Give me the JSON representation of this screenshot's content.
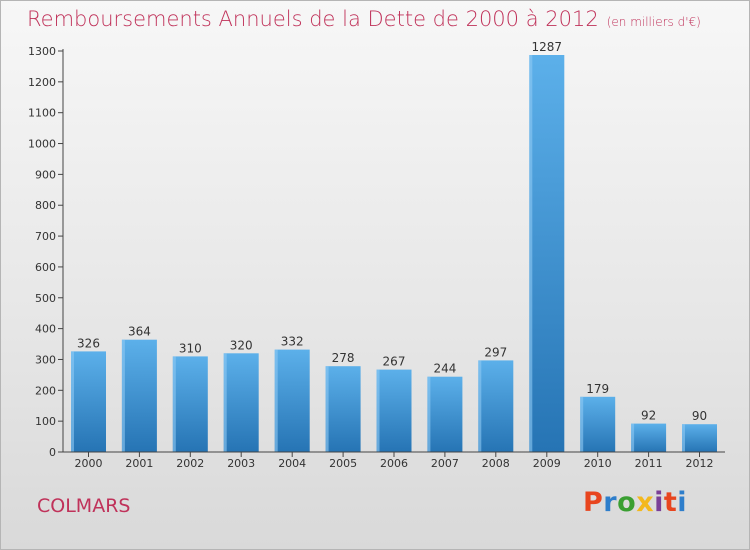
{
  "header": {
    "title": "Remboursements Annuels de la Dette de 2000 à 2012",
    "subtitle": "(en milliers d'€)"
  },
  "footer": {
    "town": "COLMARS",
    "logo": "Proxiti",
    "logo_colors": [
      "#e8451e",
      "#2e7ecb",
      "#3a9f32",
      "#f3b81d",
      "#7a3f98",
      "#e8451e",
      "#2e7ecb"
    ]
  },
  "colors": {
    "title": "#c0325a",
    "bar_top": "#5cb0ea",
    "bar_bottom": "#2674b4",
    "axis": "#444444",
    "grid": "#cfcfcf"
  },
  "chart_data": {
    "type": "bar",
    "title": "Remboursements Annuels de la Dette de 2000 à 2012",
    "subtitle": "(en milliers d'€)",
    "categories": [
      "2000",
      "2001",
      "2002",
      "2003",
      "2004",
      "2005",
      "2006",
      "2007",
      "2008",
      "2009",
      "2010",
      "2011",
      "2012"
    ],
    "values": [
      326,
      364,
      310,
      320,
      332,
      278,
      267,
      244,
      297,
      1287,
      179,
      92,
      90
    ],
    "ylim": [
      0,
      1300
    ],
    "yticks": [
      0,
      100,
      200,
      300,
      400,
      500,
      600,
      700,
      800,
      900,
      1000,
      1100,
      1200,
      1300
    ],
    "grid": false,
    "legend": "none"
  }
}
